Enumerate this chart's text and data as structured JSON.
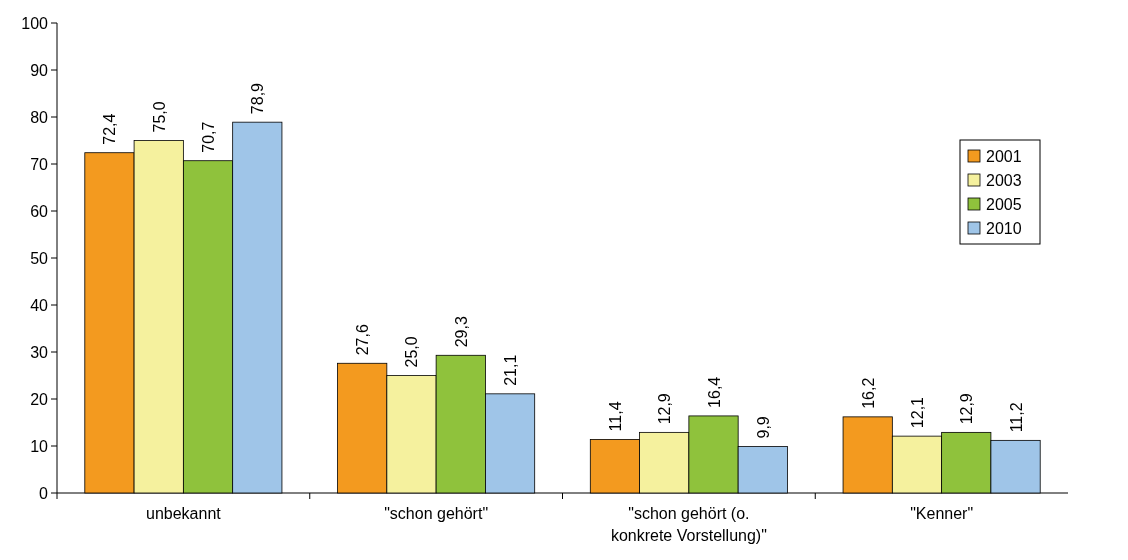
{
  "chart_data": {
    "type": "bar",
    "categories": [
      "unbekannt",
      "\"schon gehört\"",
      "\"schon gehört (o. konkrete Vorstellung)\"",
      "\"Kenner\""
    ],
    "series": [
      {
        "name": "2001",
        "color": "#f39a1f",
        "values": [
          72.4,
          27.6,
          11.4,
          16.2
        ],
        "value_labels": [
          "72,4",
          "27,6",
          "11,4",
          "16,2"
        ]
      },
      {
        "name": "2003",
        "color": "#f5f19e",
        "values": [
          75.0,
          25.0,
          12.9,
          12.1
        ],
        "value_labels": [
          "75,0",
          "25,0",
          "12,9",
          "12,1"
        ]
      },
      {
        "name": "2005",
        "color": "#8fc23c",
        "values": [
          70.7,
          29.3,
          16.4,
          12.9
        ],
        "value_labels": [
          "70,7",
          "29,3",
          "16,4",
          "12,9"
        ]
      },
      {
        "name": "2010",
        "color": "#9fc5e8",
        "values": [
          78.9,
          21.1,
          9.9,
          11.2
        ],
        "value_labels": [
          "78,9",
          "21,1",
          "9,9",
          "11,2"
        ]
      }
    ],
    "ylim": [
      0,
      100
    ],
    "yticks": [
      0,
      10,
      20,
      30,
      40,
      50,
      60,
      70,
      80,
      90,
      100
    ],
    "grid": false,
    "legend": "top right"
  }
}
